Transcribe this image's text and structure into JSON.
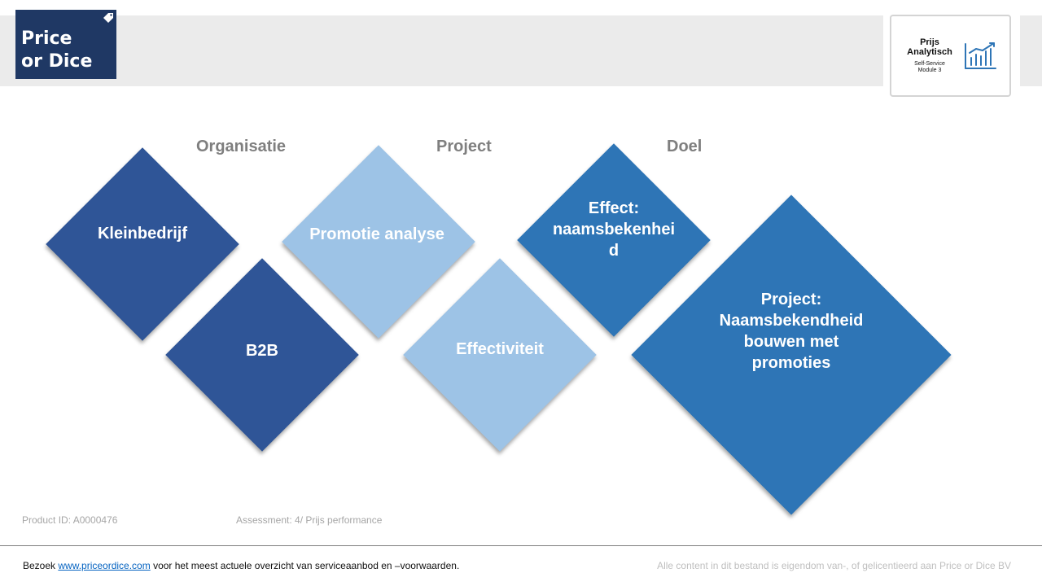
{
  "logo": {
    "line1": "Price",
    "line2": "or Dice"
  },
  "badge": {
    "title_line1": "Prijs",
    "title_line2": "Analytisch",
    "sub_line1": "Self-Service",
    "sub_line2": "Module 3",
    "icon": "bar-chart-trend-icon"
  },
  "columns": {
    "organisatie": "Organisatie",
    "project": "Project",
    "doel": "Doel"
  },
  "diamonds": {
    "kleinbedrijf": "Kleinbedrijf",
    "b2b": "B2B",
    "promotie_analyse": "Promotie analyse",
    "effectiviteit": "Effectiviteit",
    "effect_line1": "Effect:",
    "effect_line2": "naamsbekenhei",
    "effect_line3": "d",
    "project_line1": "Project:",
    "project_line2": "Naamsbekendheid",
    "project_line3": "bouwen met",
    "project_line4": "promoties"
  },
  "meta": {
    "product_id": "Product ID: A0000476",
    "assessment": "Assessment: 4/ Prijs performance"
  },
  "footer": {
    "prefix": "Bezoek ",
    "link": "www.priceordice.com",
    "suffix": " voor het meest actuele overzicht van serviceaanbod en –voorwaarden.",
    "rights": "Alle content in dit bestand is eigendom van-, of gelicentieerd aan Price or Dice BV"
  },
  "colors": {
    "dark": "#2f5597",
    "light": "#9dc3e6",
    "mid": "#2e75b6",
    "logo_bg": "#1f3864"
  }
}
